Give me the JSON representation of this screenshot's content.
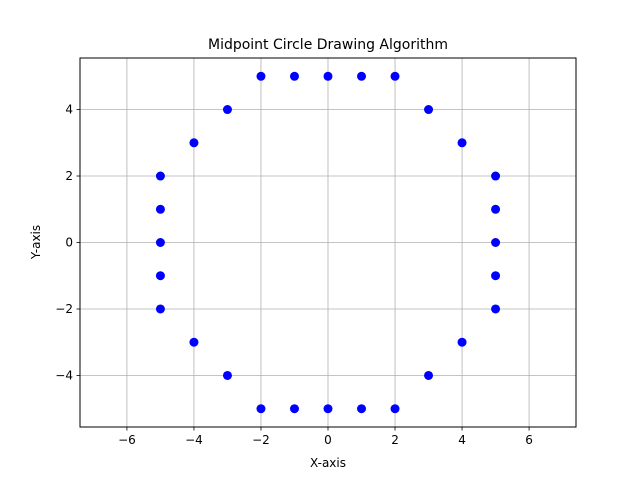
{
  "chart_data": {
    "type": "scatter",
    "title": "Midpoint Circle Drawing Algorithm",
    "xlabel": "X-axis",
    "ylabel": "Y-axis",
    "xlim": [
      -7.4,
      7.4
    ],
    "ylim": [
      -5.55,
      5.55
    ],
    "xticks": [
      -6,
      -4,
      -2,
      0,
      2,
      4,
      6
    ],
    "yticks": [
      -4,
      -2,
      0,
      2,
      4
    ],
    "grid": true,
    "marker_color": "#0000ff",
    "points": [
      [
        -2,
        5
      ],
      [
        -1,
        5
      ],
      [
        0,
        5
      ],
      [
        1,
        5
      ],
      [
        2,
        5
      ],
      [
        -3,
        4
      ],
      [
        3,
        4
      ],
      [
        -4,
        3
      ],
      [
        4,
        3
      ],
      [
        -5,
        2
      ],
      [
        5,
        2
      ],
      [
        -5,
        1
      ],
      [
        5,
        1
      ],
      [
        -5,
        0
      ],
      [
        5,
        0
      ],
      [
        -5,
        -1
      ],
      [
        5,
        -1
      ],
      [
        -5,
        -2
      ],
      [
        5,
        -2
      ],
      [
        -4,
        -3
      ],
      [
        4,
        -3
      ],
      [
        -3,
        -4
      ],
      [
        3,
        -4
      ],
      [
        -2,
        -5
      ],
      [
        -1,
        -5
      ],
      [
        0,
        -5
      ],
      [
        1,
        -5
      ],
      [
        2,
        -5
      ]
    ]
  }
}
